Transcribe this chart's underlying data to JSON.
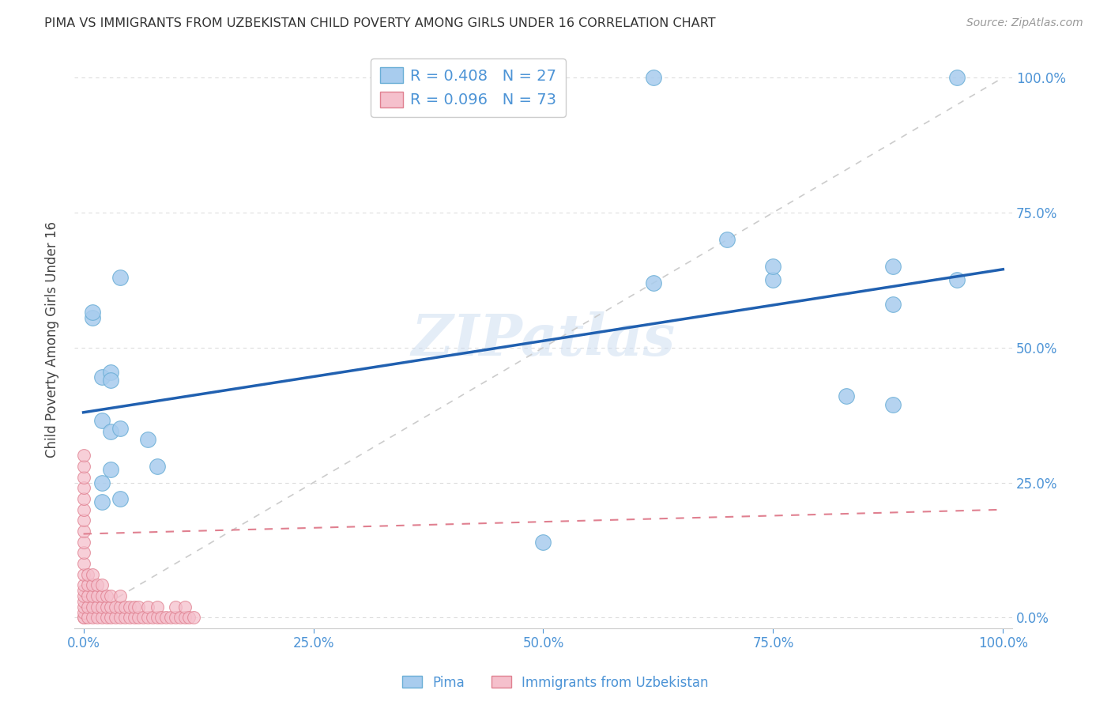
{
  "title": "PIMA VS IMMIGRANTS FROM UZBEKISTAN CHILD POVERTY AMONG GIRLS UNDER 16 CORRELATION CHART",
  "source": "Source: ZipAtlas.com",
  "ylabel": "Child Poverty Among Girls Under 16",
  "background_color": "#ffffff",
  "watermark_text": "ZIPatlas",
  "pima_scatter_color": "#a8ccee",
  "pima_edge_color": "#6aaed6",
  "uzbek_scatter_color": "#f5c0cc",
  "uzbek_edge_color": "#e08090",
  "pima_line_color": "#2060b0",
  "uzbek_line_color": "#e08090",
  "diag_line_color": "#cccccc",
  "grid_color": "#dddddd",
  "axis_color": "#4d94d6",
  "pima_R": 0.408,
  "pima_N": 27,
  "uzbek_R": 0.096,
  "uzbek_N": 73,
  "legend_label_pima": "Pima",
  "legend_label_uzbek": "Immigrants from Uzbekistan",
  "pima_x": [
    0.01,
    0.01,
    0.02,
    0.03,
    0.04,
    0.02,
    0.03,
    0.03,
    0.03,
    0.04,
    0.07,
    0.08,
    0.5,
    0.62,
    0.7,
    0.75,
    0.62,
    0.83,
    0.88,
    0.75,
    0.88,
    0.88,
    0.95,
    0.95,
    0.02,
    0.02,
    0.04
  ],
  "pima_y": [
    0.555,
    0.565,
    0.445,
    0.455,
    0.63,
    0.365,
    0.345,
    0.44,
    0.275,
    0.35,
    0.33,
    0.28,
    0.14,
    1.0,
    0.7,
    0.625,
    0.62,
    0.41,
    0.395,
    0.65,
    0.58,
    0.65,
    1.0,
    0.625,
    0.25,
    0.215,
    0.22
  ],
  "uzbek_x": [
    0.0,
    0.0,
    0.0,
    0.0,
    0.0,
    0.0,
    0.0,
    0.0,
    0.0,
    0.0,
    0.0,
    0.0,
    0.0,
    0.0,
    0.0,
    0.0,
    0.0,
    0.0,
    0.0,
    0.0,
    0.005,
    0.005,
    0.005,
    0.005,
    0.005,
    0.01,
    0.01,
    0.01,
    0.01,
    0.01,
    0.015,
    0.015,
    0.015,
    0.015,
    0.02,
    0.02,
    0.02,
    0.02,
    0.025,
    0.025,
    0.025,
    0.03,
    0.03,
    0.03,
    0.035,
    0.035,
    0.04,
    0.04,
    0.04,
    0.045,
    0.045,
    0.05,
    0.05,
    0.055,
    0.055,
    0.06,
    0.06,
    0.065,
    0.07,
    0.07,
    0.075,
    0.08,
    0.08,
    0.085,
    0.09,
    0.095,
    0.1,
    0.1,
    0.105,
    0.11,
    0.11,
    0.115,
    0.12
  ],
  "uzbek_y": [
    0.0,
    0.0,
    0.01,
    0.02,
    0.03,
    0.04,
    0.05,
    0.06,
    0.08,
    0.1,
    0.12,
    0.14,
    0.16,
    0.18,
    0.2,
    0.22,
    0.24,
    0.26,
    0.28,
    0.3,
    0.0,
    0.02,
    0.04,
    0.06,
    0.08,
    0.0,
    0.02,
    0.04,
    0.06,
    0.08,
    0.0,
    0.02,
    0.04,
    0.06,
    0.0,
    0.02,
    0.04,
    0.06,
    0.0,
    0.02,
    0.04,
    0.0,
    0.02,
    0.04,
    0.0,
    0.02,
    0.0,
    0.02,
    0.04,
    0.0,
    0.02,
    0.0,
    0.02,
    0.0,
    0.02,
    0.0,
    0.02,
    0.0,
    0.0,
    0.02,
    0.0,
    0.0,
    0.02,
    0.0,
    0.0,
    0.0,
    0.0,
    0.02,
    0.0,
    0.0,
    0.02,
    0.0,
    0.0
  ],
  "pima_line_x0": 0.0,
  "pima_line_y0": 0.38,
  "pima_line_x1": 1.0,
  "pima_line_y1": 0.645,
  "uzbek_line_x0": 0.0,
  "uzbek_line_y0": 0.155,
  "uzbek_line_x1": 1.0,
  "uzbek_line_y1": 0.2,
  "xlim": [
    0.0,
    1.0
  ],
  "ylim": [
    0.0,
    1.05
  ],
  "xticks": [
    0.0,
    0.25,
    0.5,
    0.75,
    1.0
  ],
  "yticks": [
    0.0,
    0.25,
    0.5,
    0.75,
    1.0
  ],
  "xtick_labels": [
    "0.0%",
    "25.0%",
    "50.0%",
    "75.0%",
    "100.0%"
  ],
  "ytick_labels": [
    "0.0%",
    "25.0%",
    "50.0%",
    "75.0%",
    "100.0%"
  ]
}
